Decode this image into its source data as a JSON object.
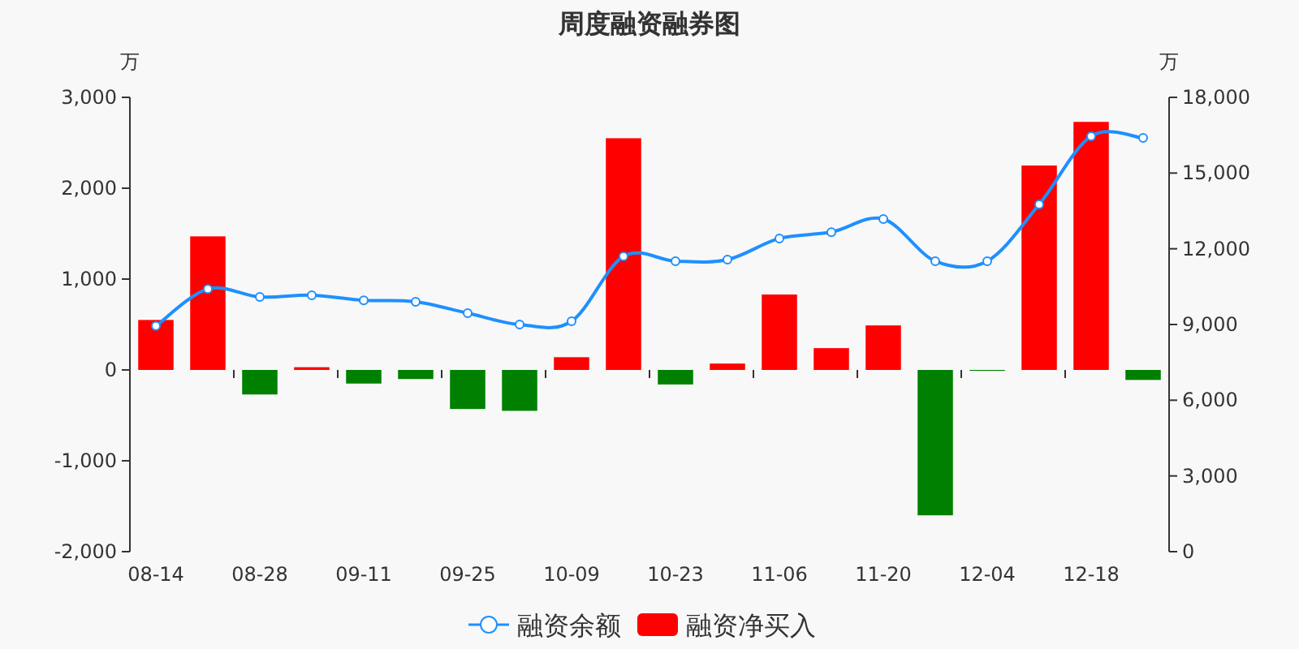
{
  "chart_data": {
    "type": "bar",
    "title": "周度融资融券图",
    "ylabel": "万",
    "y2label": "万",
    "categories": [
      "08-14",
      null,
      "08-28",
      null,
      "09-11",
      null,
      "09-25",
      null,
      "10-09",
      null,
      "10-23",
      null,
      "11-06",
      null,
      "11-20",
      null,
      "12-04",
      null,
      "12-18",
      null
    ],
    "series": [
      {
        "name": "融资余额",
        "type": "line",
        "axis": "y2",
        "color": "#1e90ff",
        "marker": "circle",
        "values": [
          8940,
          10410,
          10090,
          10160,
          9960,
          9900,
          9450,
          9000,
          9130,
          11700,
          11510,
          11570,
          12410,
          12660,
          13180,
          11510,
          11510,
          13760,
          16460,
          16390
        ]
      },
      {
        "name": "融资净买入",
        "color": "#ff0000",
        "colors": [
          "#ff0000",
          "#ff0000",
          "#008000",
          "#ff0000",
          "#008000",
          "#008000",
          "#008000",
          "#008000",
          "#ff0000",
          "#ff0000",
          "#008000",
          "#ff0000",
          "#ff0000",
          "#ff0000",
          "#ff0000",
          "#008000",
          "#008000",
          "#ff0000",
          "#ff0000",
          "#008000"
        ],
        "values": [
          550,
          1470,
          -270,
          30,
          -150,
          -100,
          -430,
          -450,
          140,
          2550,
          -160,
          70,
          830,
          240,
          490,
          -1600,
          -10,
          2250,
          2730,
          -110
        ]
      }
    ],
    "ylim": [
      -2000,
      3000
    ],
    "yticks": [
      {
        "value": -2000,
        "label": "-2,000"
      },
      {
        "value": -1000,
        "label": "-1,000"
      },
      0,
      {
        "value": 1000,
        "label": "1,000"
      },
      {
        "value": 2000,
        "label": "2,000"
      },
      {
        "value": 3000,
        "label": "3,000"
      }
    ],
    "y2lim": [
      0,
      18000
    ],
    "y2ticks": [
      0,
      {
        "value": 3000,
        "label": "3,000"
      },
      {
        "value": 6000,
        "label": "6,000"
      },
      {
        "value": 9000,
        "label": "9,000"
      },
      {
        "value": 12000,
        "label": "12,000"
      },
      {
        "value": 15000,
        "label": "15,000"
      },
      {
        "value": 18000,
        "label": "18,000"
      }
    ],
    "legend": "bottom",
    "grid": false
  }
}
